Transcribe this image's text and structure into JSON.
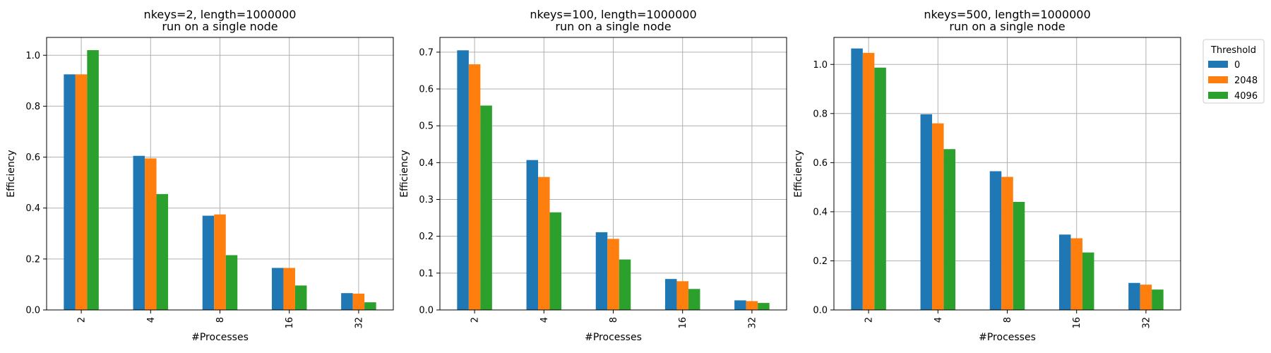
{
  "chart_data": [
    {
      "type": "bar",
      "title": "nkeys=2, length=1000000",
      "subtitle": "run on a single node",
      "xlabel": "#Processes",
      "ylabel": "Efficiency",
      "categories": [
        "2",
        "4",
        "8",
        "16",
        "32"
      ],
      "ylim": [
        0,
        1.07
      ],
      "yticks": [
        0.0,
        0.2,
        0.4,
        0.6,
        0.8,
        1.0
      ],
      "ytick_labels": [
        "0.0",
        "0.2",
        "0.4",
        "0.6",
        "0.8",
        "1.0"
      ],
      "grid": true,
      "series": [
        {
          "name": "0",
          "values": [
            0.925,
            0.605,
            0.37,
            0.165,
            0.066
          ]
        },
        {
          "name": "2048",
          "values": [
            0.925,
            0.595,
            0.375,
            0.165,
            0.064
          ]
        },
        {
          "name": "4096",
          "values": [
            1.02,
            0.455,
            0.215,
            0.096,
            0.03
          ]
        }
      ]
    },
    {
      "type": "bar",
      "title": "nkeys=100, length=1000000",
      "subtitle": "run on a single node",
      "xlabel": "#Processes",
      "ylabel": "Efficiency",
      "categories": [
        "2",
        "4",
        "8",
        "16",
        "32"
      ],
      "ylim": [
        0,
        0.74
      ],
      "yticks": [
        0.0,
        0.1,
        0.2,
        0.3,
        0.4,
        0.5,
        0.6,
        0.7
      ],
      "ytick_labels": [
        "0.0",
        "0.1",
        "0.2",
        "0.3",
        "0.4",
        "0.5",
        "0.6",
        "0.7"
      ],
      "grid": true,
      "series": [
        {
          "name": "0",
          "values": [
            0.705,
            0.407,
            0.211,
            0.084,
            0.026
          ]
        },
        {
          "name": "2048",
          "values": [
            0.667,
            0.361,
            0.193,
            0.078,
            0.024
          ]
        },
        {
          "name": "4096",
          "values": [
            0.555,
            0.265,
            0.137,
            0.057,
            0.019
          ]
        }
      ]
    },
    {
      "type": "bar",
      "title": "nkeys=500, length=1000000",
      "subtitle": "run on a single node",
      "xlabel": "#Processes",
      "ylabel": "Efficiency",
      "categories": [
        "2",
        "4",
        "8",
        "16",
        "32"
      ],
      "ylim": [
        0,
        1.11
      ],
      "yticks": [
        0.0,
        0.2,
        0.4,
        0.6,
        0.8,
        1.0
      ],
      "ytick_labels": [
        "0.0",
        "0.2",
        "0.4",
        "0.6",
        "0.8",
        "1.0"
      ],
      "grid": true,
      "series": [
        {
          "name": "0",
          "values": [
            1.065,
            0.797,
            0.565,
            0.307,
            0.11
          ]
        },
        {
          "name": "2048",
          "values": [
            1.047,
            0.76,
            0.542,
            0.292,
            0.103
          ]
        },
        {
          "name": "4096",
          "values": [
            0.987,
            0.655,
            0.44,
            0.234,
            0.083
          ]
        }
      ]
    }
  ],
  "legend": {
    "title": "Threshold",
    "placement": "outside-right",
    "entries": [
      "0",
      "2048",
      "4096"
    ]
  },
  "colors": {
    "0": "#1f77b4",
    "2048": "#ff7f0e",
    "4096": "#2ca02c",
    "grid": "#b0b0b0",
    "axes": "#000000"
  }
}
